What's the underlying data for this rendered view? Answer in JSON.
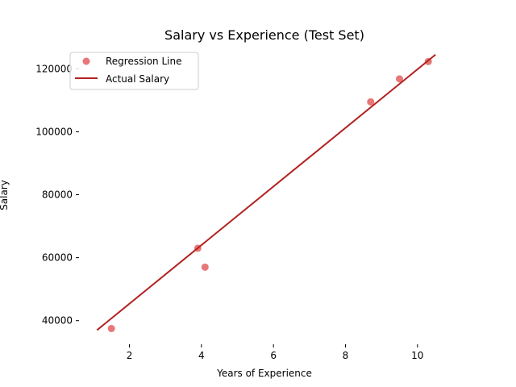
{
  "chart_data": {
    "type": "scatter",
    "title": "Salary vs Experience (Test Set)",
    "xlabel": "Years of Experience",
    "ylabel": "Salary",
    "xlim": [
      0.6,
      10.9
    ],
    "ylim": [
      32500,
      127000
    ],
    "xticks": [
      2,
      4,
      6,
      8,
      10
    ],
    "yticks": [
      40000,
      60000,
      80000,
      100000,
      120000
    ],
    "grid": false,
    "legend_placement": "top-left",
    "series": [
      {
        "name": "Regression Line",
        "kind": "scatter",
        "color": "#e87777",
        "x": [
          1.5,
          3.9,
          4.1,
          8.7,
          9.5,
          10.3
        ],
        "y": [
          37500,
          63000,
          57000,
          109500,
          116800,
          122300
        ]
      },
      {
        "name": "Actual Salary",
        "kind": "line",
        "color": "#b22222",
        "x": [
          1.1,
          10.5
        ],
        "y": [
          37000,
          124500
        ]
      }
    ]
  }
}
